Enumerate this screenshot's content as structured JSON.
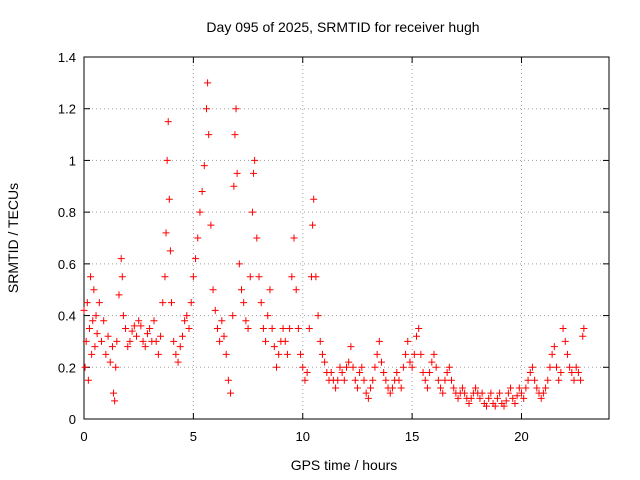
{
  "chart_data": {
    "type": "scatter",
    "title": "Day 095 of 2025, SRMTID for receiver hugh",
    "xlabel": "GPS time / hours",
    "ylabel": "SRMTID / TECUs",
    "xlim": [
      0,
      24
    ],
    "ylim": [
      0,
      1.4
    ],
    "xticks": [
      0,
      5,
      10,
      15,
      20
    ],
    "xtick_labels": [
      "0",
      "5",
      "10",
      "15",
      "20"
    ],
    "yticks": [
      0,
      0.2,
      0.4,
      0.6,
      0.8,
      1,
      1.2,
      1.4
    ],
    "ytick_labels": [
      "0",
      "0.2",
      "0.4",
      "0.6",
      "0.8",
      "1",
      "1.2",
      "1.4"
    ],
    "grid": true,
    "marker": "+",
    "color": "#ff0000",
    "series": [
      {
        "name": "SRMTID",
        "points": [
          [
            0.0,
            0.42
          ],
          [
            0.05,
            0.2
          ],
          [
            0.1,
            0.3
          ],
          [
            0.15,
            0.45
          ],
          [
            0.2,
            0.15
          ],
          [
            0.25,
            0.35
          ],
          [
            0.3,
            0.55
          ],
          [
            0.35,
            0.25
          ],
          [
            0.4,
            0.38
          ],
          [
            0.45,
            0.5
          ],
          [
            0.5,
            0.28
          ],
          [
            0.55,
            0.4
          ],
          [
            0.6,
            0.33
          ],
          [
            0.7,
            0.45
          ],
          [
            0.8,
            0.3
          ],
          [
            0.9,
            0.38
          ],
          [
            1.0,
            0.25
          ],
          [
            1.1,
            0.32
          ],
          [
            1.2,
            0.22
          ],
          [
            1.3,
            0.28
          ],
          [
            1.35,
            0.1
          ],
          [
            1.4,
            0.07
          ],
          [
            1.45,
            0.2
          ],
          [
            1.5,
            0.3
          ],
          [
            1.6,
            0.48
          ],
          [
            1.7,
            0.62
          ],
          [
            1.75,
            0.55
          ],
          [
            1.8,
            0.4
          ],
          [
            1.9,
            0.35
          ],
          [
            2.0,
            0.28
          ],
          [
            2.1,
            0.3
          ],
          [
            2.2,
            0.34
          ],
          [
            2.3,
            0.36
          ],
          [
            2.4,
            0.32
          ],
          [
            2.5,
            0.38
          ],
          [
            2.6,
            0.36
          ],
          [
            2.7,
            0.3
          ],
          [
            2.8,
            0.28
          ],
          [
            2.9,
            0.33
          ],
          [
            3.0,
            0.35
          ],
          [
            3.1,
            0.3
          ],
          [
            3.2,
            0.38
          ],
          [
            3.3,
            0.3
          ],
          [
            3.4,
            0.25
          ],
          [
            3.5,
            0.32
          ],
          [
            3.6,
            0.45
          ],
          [
            3.7,
            0.55
          ],
          [
            3.75,
            0.72
          ],
          [
            3.8,
            1.0
          ],
          [
            3.85,
            1.15
          ],
          [
            3.9,
            0.85
          ],
          [
            3.95,
            0.65
          ],
          [
            4.0,
            0.45
          ],
          [
            4.1,
            0.3
          ],
          [
            4.2,
            0.25
          ],
          [
            4.3,
            0.22
          ],
          [
            4.4,
            0.28
          ],
          [
            4.5,
            0.32
          ],
          [
            4.6,
            0.38
          ],
          [
            4.7,
            0.4
          ],
          [
            4.8,
            0.35
          ],
          [
            4.9,
            0.45
          ],
          [
            5.0,
            0.55
          ],
          [
            5.1,
            0.62
          ],
          [
            5.2,
            0.7
          ],
          [
            5.3,
            0.8
          ],
          [
            5.4,
            0.88
          ],
          [
            5.5,
            0.98
          ],
          [
            5.6,
            1.2
          ],
          [
            5.65,
            1.3
          ],
          [
            5.7,
            1.1
          ],
          [
            5.8,
            0.75
          ],
          [
            5.9,
            0.5
          ],
          [
            6.0,
            0.42
          ],
          [
            6.1,
            0.35
          ],
          [
            6.2,
            0.3
          ],
          [
            6.3,
            0.38
          ],
          [
            6.4,
            0.32
          ],
          [
            6.5,
            0.25
          ],
          [
            6.6,
            0.15
          ],
          [
            6.7,
            0.1
          ],
          [
            6.8,
            0.4
          ],
          [
            6.85,
            0.9
          ],
          [
            6.9,
            1.1
          ],
          [
            6.95,
            1.2
          ],
          [
            7.0,
            0.95
          ],
          [
            7.1,
            0.6
          ],
          [
            7.2,
            0.5
          ],
          [
            7.3,
            0.45
          ],
          [
            7.4,
            0.38
          ],
          [
            7.5,
            0.35
          ],
          [
            7.6,
            0.55
          ],
          [
            7.7,
            0.8
          ],
          [
            7.75,
            0.95
          ],
          [
            7.8,
            1.0
          ],
          [
            7.9,
            0.7
          ],
          [
            8.0,
            0.55
          ],
          [
            8.1,
            0.45
          ],
          [
            8.2,
            0.35
          ],
          [
            8.3,
            0.3
          ],
          [
            8.4,
            0.4
          ],
          [
            8.5,
            0.5
          ],
          [
            8.6,
            0.35
          ],
          [
            8.7,
            0.28
          ],
          [
            8.8,
            0.2
          ],
          [
            8.9,
            0.25
          ],
          [
            9.0,
            0.3
          ],
          [
            9.1,
            0.35
          ],
          [
            9.2,
            0.3
          ],
          [
            9.3,
            0.25
          ],
          [
            9.4,
            0.35
          ],
          [
            9.5,
            0.55
          ],
          [
            9.6,
            0.7
          ],
          [
            9.7,
            0.5
          ],
          [
            9.8,
            0.35
          ],
          [
            9.9,
            0.25
          ],
          [
            10.0,
            0.2
          ],
          [
            10.1,
            0.15
          ],
          [
            10.2,
            0.18
          ],
          [
            10.3,
            0.35
          ],
          [
            10.4,
            0.55
          ],
          [
            10.45,
            0.75
          ],
          [
            10.5,
            0.85
          ],
          [
            10.6,
            0.55
          ],
          [
            10.7,
            0.4
          ],
          [
            10.8,
            0.3
          ],
          [
            10.9,
            0.25
          ],
          [
            11.0,
            0.22
          ],
          [
            11.1,
            0.18
          ],
          [
            11.2,
            0.15
          ],
          [
            11.3,
            0.18
          ],
          [
            11.4,
            0.15
          ],
          [
            11.5,
            0.12
          ],
          [
            11.6,
            0.15
          ],
          [
            11.7,
            0.2
          ],
          [
            11.8,
            0.18
          ],
          [
            11.9,
            0.15
          ],
          [
            12.0,
            0.2
          ],
          [
            12.1,
            0.22
          ],
          [
            12.2,
            0.28
          ],
          [
            12.3,
            0.2
          ],
          [
            12.4,
            0.15
          ],
          [
            12.5,
            0.12
          ],
          [
            12.6,
            0.18
          ],
          [
            12.7,
            0.2
          ],
          [
            12.8,
            0.15
          ],
          [
            12.9,
            0.1
          ],
          [
            13.0,
            0.08
          ],
          [
            13.1,
            0.12
          ],
          [
            13.2,
            0.15
          ],
          [
            13.3,
            0.2
          ],
          [
            13.4,
            0.25
          ],
          [
            13.5,
            0.3
          ],
          [
            13.6,
            0.22
          ],
          [
            13.7,
            0.18
          ],
          [
            13.8,
            0.15
          ],
          [
            13.9,
            0.12
          ],
          [
            14.0,
            0.1
          ],
          [
            14.1,
            0.12
          ],
          [
            14.2,
            0.15
          ],
          [
            14.3,
            0.18
          ],
          [
            14.4,
            0.15
          ],
          [
            14.5,
            0.12
          ],
          [
            14.6,
            0.2
          ],
          [
            14.7,
            0.25
          ],
          [
            14.8,
            0.3
          ],
          [
            14.9,
            0.22
          ],
          [
            15.0,
            0.2
          ],
          [
            15.1,
            0.25
          ],
          [
            15.2,
            0.32
          ],
          [
            15.3,
            0.35
          ],
          [
            15.4,
            0.25
          ],
          [
            15.5,
            0.18
          ],
          [
            15.6,
            0.15
          ],
          [
            15.7,
            0.12
          ],
          [
            15.8,
            0.18
          ],
          [
            15.9,
            0.22
          ],
          [
            16.0,
            0.25
          ],
          [
            16.1,
            0.2
          ],
          [
            16.2,
            0.15
          ],
          [
            16.3,
            0.12
          ],
          [
            16.4,
            0.1
          ],
          [
            16.5,
            0.15
          ],
          [
            16.6,
            0.18
          ],
          [
            16.7,
            0.2
          ],
          [
            16.8,
            0.15
          ],
          [
            16.9,
            0.12
          ],
          [
            17.0,
            0.1
          ],
          [
            17.1,
            0.08
          ],
          [
            17.2,
            0.1
          ],
          [
            17.3,
            0.12
          ],
          [
            17.4,
            0.1
          ],
          [
            17.5,
            0.08
          ],
          [
            17.6,
            0.06
          ],
          [
            17.7,
            0.08
          ],
          [
            17.8,
            0.1
          ],
          [
            17.9,
            0.12
          ],
          [
            18.0,
            0.1
          ],
          [
            18.1,
            0.08
          ],
          [
            18.2,
            0.1
          ],
          [
            18.3,
            0.06
          ],
          [
            18.4,
            0.05
          ],
          [
            18.5,
            0.08
          ],
          [
            18.6,
            0.1
          ],
          [
            18.7,
            0.06
          ],
          [
            18.8,
            0.05
          ],
          [
            18.9,
            0.08
          ],
          [
            19.0,
            0.1
          ],
          [
            19.1,
            0.06
          ],
          [
            19.2,
            0.05
          ],
          [
            19.3,
            0.07
          ],
          [
            19.4,
            0.1
          ],
          [
            19.5,
            0.12
          ],
          [
            19.6,
            0.08
          ],
          [
            19.7,
            0.06
          ],
          [
            19.8,
            0.09
          ],
          [
            19.9,
            0.12
          ],
          [
            20.0,
            0.1
          ],
          [
            20.1,
            0.08
          ],
          [
            20.2,
            0.12
          ],
          [
            20.3,
            0.15
          ],
          [
            20.4,
            0.18
          ],
          [
            20.5,
            0.2
          ],
          [
            20.6,
            0.15
          ],
          [
            20.7,
            0.12
          ],
          [
            20.8,
            0.1
          ],
          [
            20.9,
            0.08
          ],
          [
            21.0,
            0.1
          ],
          [
            21.1,
            0.12
          ],
          [
            21.2,
            0.15
          ],
          [
            21.3,
            0.2
          ],
          [
            21.4,
            0.25
          ],
          [
            21.5,
            0.28
          ],
          [
            21.6,
            0.2
          ],
          [
            21.7,
            0.15
          ],
          [
            21.8,
            0.18
          ],
          [
            21.9,
            0.35
          ],
          [
            22.0,
            0.3
          ],
          [
            22.1,
            0.25
          ],
          [
            22.2,
            0.2
          ],
          [
            22.3,
            0.18
          ],
          [
            22.4,
            0.15
          ],
          [
            22.5,
            0.2
          ],
          [
            22.6,
            0.18
          ],
          [
            22.7,
            0.15
          ],
          [
            22.8,
            0.32
          ],
          [
            22.85,
            0.35
          ]
        ]
      }
    ]
  }
}
